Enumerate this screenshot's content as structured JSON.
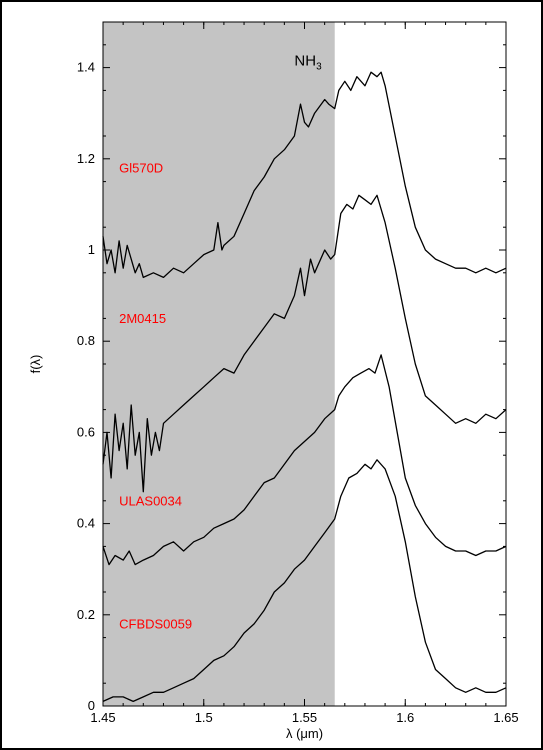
{
  "chart_data": {
    "type": "line",
    "title": "",
    "xlabel": "λ (μm)",
    "ylabel": "f(λ)",
    "xlim": [
      1.45,
      1.65
    ],
    "ylim": [
      0,
      1.5
    ],
    "xticks": [
      1.45,
      1.5,
      1.55,
      1.6,
      1.65
    ],
    "xtick_labels": [
      "1.45",
      "1.5",
      "1.55",
      "1.6",
      "1.65"
    ],
    "yticks": [
      0,
      0.2,
      0.4,
      0.6,
      0.8,
      1.0,
      1.2,
      1.4
    ],
    "ytick_labels": [
      "0",
      "0.2",
      "0.4",
      "0.6",
      "0.8",
      "1",
      "1.2",
      "1.4"
    ],
    "grid": false,
    "shaded_region": {
      "x": [
        1.45,
        1.565
      ],
      "color": "#c4c4c4"
    },
    "annotation": {
      "text": "NH",
      "subscript": "3",
      "x": 1.545,
      "y": 1.405
    },
    "label_color": "#ff0000",
    "line_color": "#000000",
    "series": [
      {
        "name": "Gl570D",
        "label_at": [
          1.458,
          1.17
        ],
        "x": [
          1.45,
          1.452,
          1.454,
          1.456,
          1.458,
          1.46,
          1.462,
          1.464,
          1.466,
          1.468,
          1.47,
          1.475,
          1.48,
          1.485,
          1.49,
          1.495,
          1.5,
          1.505,
          1.507,
          1.509,
          1.51,
          1.515,
          1.52,
          1.525,
          1.53,
          1.535,
          1.54,
          1.545,
          1.548,
          1.55,
          1.552,
          1.555,
          1.56,
          1.562,
          1.565,
          1.567,
          1.57,
          1.573,
          1.576,
          1.58,
          1.583,
          1.586,
          1.588,
          1.59,
          1.595,
          1.6,
          1.605,
          1.61,
          1.615,
          1.62,
          1.625,
          1.63,
          1.635,
          1.64,
          1.645,
          1.65
        ],
        "y": [
          1.03,
          0.97,
          1.0,
          0.95,
          1.02,
          0.96,
          1.01,
          0.98,
          0.95,
          0.97,
          0.94,
          0.95,
          0.94,
          0.96,
          0.95,
          0.97,
          0.99,
          1.0,
          1.06,
          1.0,
          1.01,
          1.03,
          1.08,
          1.13,
          1.16,
          1.2,
          1.22,
          1.25,
          1.32,
          1.28,
          1.27,
          1.3,
          1.33,
          1.32,
          1.31,
          1.35,
          1.37,
          1.35,
          1.38,
          1.36,
          1.39,
          1.38,
          1.39,
          1.36,
          1.25,
          1.14,
          1.05,
          1.0,
          0.98,
          0.97,
          0.96,
          0.96,
          0.95,
          0.96,
          0.95,
          0.96
        ]
      },
      {
        "name": "2M0415",
        "label_at": [
          1.458,
          0.84
        ],
        "x": [
          1.45,
          1.452,
          1.454,
          1.456,
          1.458,
          1.46,
          1.462,
          1.464,
          1.466,
          1.468,
          1.47,
          1.472,
          1.474,
          1.476,
          1.478,
          1.48,
          1.485,
          1.49,
          1.495,
          1.5,
          1.505,
          1.51,
          1.515,
          1.52,
          1.525,
          1.53,
          1.535,
          1.54,
          1.545,
          1.548,
          1.55,
          1.553,
          1.555,
          1.56,
          1.563,
          1.565,
          1.568,
          1.571,
          1.574,
          1.577,
          1.58,
          1.583,
          1.586,
          1.59,
          1.595,
          1.6,
          1.605,
          1.61,
          1.615,
          1.62,
          1.625,
          1.63,
          1.635,
          1.64,
          1.645,
          1.65
        ],
        "y": [
          0.53,
          0.6,
          0.5,
          0.64,
          0.56,
          0.62,
          0.52,
          0.66,
          0.55,
          0.6,
          0.47,
          0.63,
          0.55,
          0.6,
          0.56,
          0.62,
          0.64,
          0.66,
          0.68,
          0.7,
          0.72,
          0.74,
          0.73,
          0.77,
          0.8,
          0.83,
          0.86,
          0.85,
          0.9,
          0.96,
          0.9,
          0.98,
          0.95,
          1.0,
          0.98,
          0.99,
          1.08,
          1.1,
          1.09,
          1.12,
          1.11,
          1.1,
          1.12,
          1.06,
          0.96,
          0.85,
          0.75,
          0.68,
          0.66,
          0.64,
          0.62,
          0.63,
          0.62,
          0.64,
          0.63,
          0.65
        ]
      },
      {
        "name": "ULAS0034",
        "label_at": [
          1.458,
          0.44
        ],
        "x": [
          1.45,
          1.453,
          1.456,
          1.46,
          1.463,
          1.466,
          1.47,
          1.475,
          1.48,
          1.485,
          1.49,
          1.495,
          1.5,
          1.505,
          1.51,
          1.515,
          1.52,
          1.525,
          1.53,
          1.535,
          1.54,
          1.545,
          1.55,
          1.555,
          1.56,
          1.565,
          1.567,
          1.57,
          1.574,
          1.578,
          1.582,
          1.585,
          1.588,
          1.592,
          1.596,
          1.6,
          1.605,
          1.61,
          1.615,
          1.62,
          1.625,
          1.63,
          1.635,
          1.64,
          1.645,
          1.65
        ],
        "y": [
          0.35,
          0.31,
          0.33,
          0.32,
          0.34,
          0.31,
          0.32,
          0.33,
          0.35,
          0.36,
          0.34,
          0.36,
          0.37,
          0.39,
          0.4,
          0.41,
          0.43,
          0.46,
          0.49,
          0.5,
          0.53,
          0.56,
          0.58,
          0.6,
          0.63,
          0.65,
          0.68,
          0.7,
          0.72,
          0.73,
          0.74,
          0.73,
          0.77,
          0.7,
          0.6,
          0.5,
          0.44,
          0.4,
          0.37,
          0.35,
          0.34,
          0.34,
          0.33,
          0.34,
          0.34,
          0.35
        ]
      },
      {
        "name": "CFBDS0059",
        "label_at": [
          1.458,
          0.17
        ],
        "x": [
          1.45,
          1.455,
          1.46,
          1.465,
          1.47,
          1.475,
          1.48,
          1.485,
          1.49,
          1.495,
          1.5,
          1.505,
          1.51,
          1.515,
          1.52,
          1.525,
          1.53,
          1.535,
          1.54,
          1.545,
          1.55,
          1.555,
          1.56,
          1.565,
          1.568,
          1.572,
          1.576,
          1.58,
          1.583,
          1.586,
          1.59,
          1.595,
          1.6,
          1.605,
          1.61,
          1.615,
          1.62,
          1.625,
          1.63,
          1.635,
          1.64,
          1.645,
          1.65
        ],
        "y": [
          0.01,
          0.02,
          0.02,
          0.01,
          0.02,
          0.03,
          0.03,
          0.04,
          0.05,
          0.06,
          0.08,
          0.1,
          0.11,
          0.13,
          0.16,
          0.18,
          0.21,
          0.25,
          0.27,
          0.3,
          0.32,
          0.35,
          0.38,
          0.41,
          0.46,
          0.5,
          0.51,
          0.53,
          0.52,
          0.54,
          0.52,
          0.46,
          0.36,
          0.24,
          0.14,
          0.08,
          0.06,
          0.04,
          0.03,
          0.04,
          0.03,
          0.03,
          0.04
        ]
      }
    ]
  }
}
